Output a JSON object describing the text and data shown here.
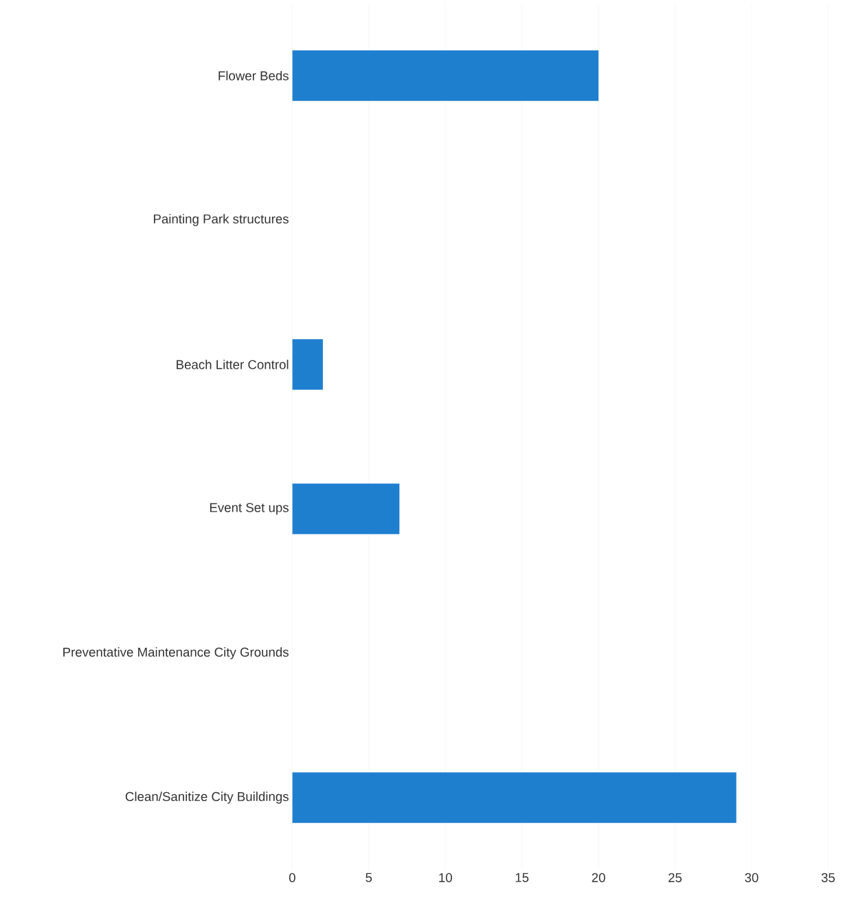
{
  "chart_data": {
    "type": "bar",
    "orientation": "horizontal",
    "categories": [
      "Flower Beds",
      "Painting Park structures",
      "Beach Litter Control",
      "Event Set ups",
      "Preventative Maintenance City Grounds",
      "Clean/Sanitize City Buildings"
    ],
    "values": [
      20,
      0,
      2,
      7,
      0,
      29
    ],
    "color": "#1f7fcf",
    "xlim": [
      0,
      35
    ],
    "xticks": [
      0,
      5,
      10,
      15,
      20,
      25,
      30,
      35
    ],
    "grid": "x"
  }
}
